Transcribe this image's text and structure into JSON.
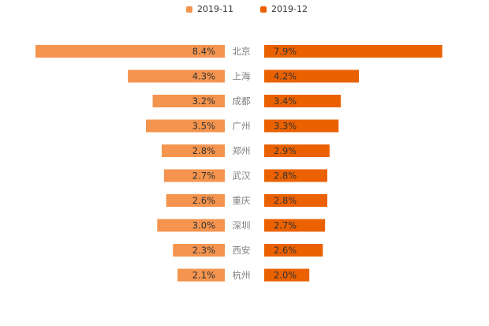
{
  "chart_data": {
    "type": "bar",
    "orientation": "horizontal-mirrored",
    "categories": [
      "北京",
      "上海",
      "成都",
      "广州",
      "郑州",
      "武汉",
      "重庆",
      "深圳",
      "西安",
      "杭州"
    ],
    "series": [
      {
        "name": "2019-11",
        "color": "#f4944e",
        "values": [
          8.4,
          4.3,
          3.2,
          3.5,
          2.8,
          2.7,
          2.6,
          3.0,
          2.3,
          2.1
        ],
        "labels": [
          "8.4%",
          "4.3%",
          "3.2%",
          "3.5%",
          "2.8%",
          "2.7%",
          "2.6%",
          "3.0%",
          "2.3%",
          "2.1%"
        ]
      },
      {
        "name": "2019-12",
        "color": "#eb6100",
        "values": [
          7.9,
          4.2,
          3.4,
          3.3,
          2.9,
          2.8,
          2.8,
          2.7,
          2.6,
          2.0
        ],
        "labels": [
          "7.9%",
          "4.2%",
          "3.4%",
          "3.3%",
          "2.9%",
          "2.8%",
          "2.8%",
          "2.7%",
          "2.6%",
          "2.0%"
        ]
      }
    ],
    "legend_position": "top-center"
  }
}
